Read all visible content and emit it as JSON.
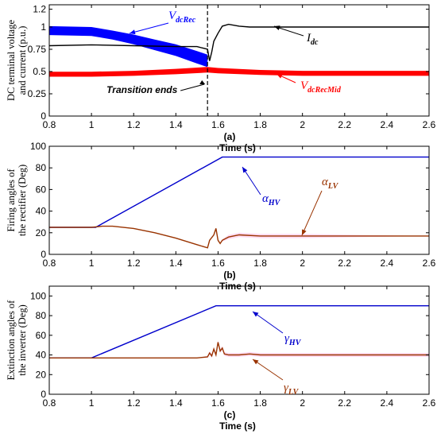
{
  "chart_data": [
    {
      "type": "line",
      "panel_label": "(a)",
      "xlabel": "Time (s)",
      "ylabel_lines": [
        "DC terminal voltage",
        "and current (p.u.)"
      ],
      "xlim": [
        0.8,
        2.6
      ],
      "ylim": [
        0,
        1.25
      ],
      "xticks": [
        "0.8",
        "1",
        "1.2",
        "1.4",
        "1.6",
        "1.8",
        "2",
        "2.2",
        "2.4",
        "2.6"
      ],
      "yticks": [
        "0",
        "0.25",
        "0.5",
        "0.75",
        "1",
        "1.2"
      ],
      "series": [
        {
          "name_main": "V",
          "name_sub": "dcRec",
          "color": "#0000ff",
          "x": [
            0.8,
            1.0,
            1.1,
            1.2,
            1.3,
            1.4,
            1.5,
            1.55
          ],
          "y": [
            0.96,
            0.95,
            0.91,
            0.86,
            0.8,
            0.74,
            0.66,
            0.62
          ],
          "band": [
            0.05,
            0.05,
            0.05,
            0.055,
            0.06,
            0.065,
            0.07,
            0.07
          ]
        },
        {
          "name_main": "V",
          "name_sub": "dcRecMid",
          "color": "#ff0000",
          "x": [
            0.8,
            1.0,
            1.2,
            1.4,
            1.55,
            1.6,
            1.8,
            2.0,
            2.6
          ],
          "y": [
            0.47,
            0.47,
            0.48,
            0.5,
            0.52,
            0.51,
            0.49,
            0.48,
            0.48
          ],
          "band": [
            0.028,
            0.028,
            0.028,
            0.03,
            0.032,
            0.03,
            0.028,
            0.028,
            0.028
          ]
        },
        {
          "name_main": "I",
          "name_sub": "dc",
          "color": "#000000",
          "x": [
            0.8,
            1.0,
            1.2,
            1.4,
            1.5,
            1.55,
            1.56,
            1.57,
            1.58,
            1.6,
            1.62,
            1.65,
            1.7,
            1.75,
            1.8,
            2.0,
            2.6
          ],
          "y": [
            0.79,
            0.8,
            0.79,
            0.78,
            0.78,
            0.75,
            0.62,
            0.72,
            0.84,
            0.93,
            1.01,
            1.03,
            1.01,
            1.0,
            1.0,
            1.0,
            1.0
          ]
        }
      ],
      "vline_x": 1.55,
      "annotation": "Transition ends"
    },
    {
      "type": "line",
      "panel_label": "(b)",
      "xlabel": "Time (s)",
      "ylabel_lines": [
        "Firing angles of",
        "the rectifier (Deg)"
      ],
      "xlim": [
        0.8,
        2.6
      ],
      "ylim": [
        0,
        100
      ],
      "xticks": [
        "0.8",
        "1",
        "1.2",
        "1.4",
        "1.6",
        "1.8",
        "2",
        "2.2",
        "2.4",
        "2.6"
      ],
      "yticks": [
        "0",
        "20",
        "40",
        "60",
        "80",
        "100"
      ],
      "series": [
        {
          "name_main": "α",
          "name_sub": "HV",
          "color": "#0000cc",
          "x": [
            0.8,
            1.02,
            1.62,
            2.6
          ],
          "y": [
            25,
            25,
            90,
            90
          ]
        },
        {
          "name_main": "α",
          "name_sub": "LV",
          "color": "#993300",
          "x": [
            0.8,
            1.0,
            1.05,
            1.1,
            1.2,
            1.3,
            1.4,
            1.5,
            1.55,
            1.56,
            1.58,
            1.59,
            1.6,
            1.61,
            1.62,
            1.65,
            1.7,
            1.8,
            2.0,
            2.6
          ],
          "y": [
            25,
            25,
            26,
            26,
            24,
            20,
            15,
            9,
            6,
            13,
            18,
            24,
            13,
            10,
            13,
            16,
            18,
            17,
            17,
            17
          ],
          "band": [
            0,
            0,
            0,
            0,
            0,
            0,
            0,
            0,
            0,
            0,
            0,
            0,
            0,
            0,
            1,
            2,
            2,
            2,
            2,
            0
          ]
        }
      ]
    },
    {
      "type": "line",
      "panel_label": "(c)",
      "xlabel": "Time (s)",
      "ylabel_lines": [
        "Extinction angles of",
        "the inverter (Deg)"
      ],
      "xlim": [
        0.8,
        2.6
      ],
      "ylim": [
        0,
        110
      ],
      "xticks": [
        "0.8",
        "1",
        "1.2",
        "1.4",
        "1.6",
        "1.8",
        "2",
        "2.2",
        "2.4",
        "2.6"
      ],
      "yticks": [
        "0",
        "20",
        "40",
        "60",
        "80",
        "100"
      ],
      "series": [
        {
          "name_main": "γ",
          "name_sub": "HV",
          "color": "#0000cc",
          "x": [
            0.8,
            1.0,
            1.59,
            2.6
          ],
          "y": [
            37,
            37,
            90,
            90
          ]
        },
        {
          "name_main": "γ",
          "name_sub": "LV",
          "color": "#993300",
          "x": [
            0.8,
            1.5,
            1.55,
            1.56,
            1.57,
            1.58,
            1.59,
            1.6,
            1.61,
            1.62,
            1.63,
            1.65,
            1.7,
            1.75,
            1.8,
            2.0,
            2.6
          ],
          "y": [
            37,
            37,
            38,
            42,
            39,
            46,
            40,
            53,
            44,
            47,
            41,
            40,
            40,
            41,
            40,
            40,
            40
          ],
          "band": [
            0,
            0,
            1,
            2,
            2,
            2,
            2,
            2,
            2,
            2,
            2,
            2,
            2,
            2,
            2,
            2,
            2
          ]
        }
      ]
    }
  ]
}
